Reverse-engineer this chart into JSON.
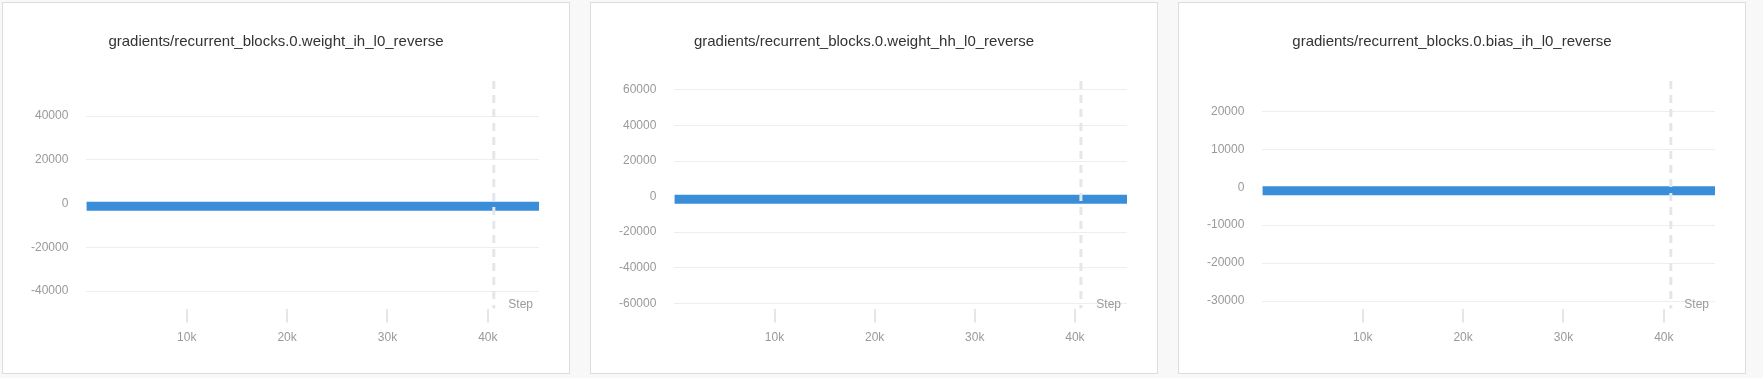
{
  "chart_data": [
    {
      "type": "line",
      "title": "gradients/recurrent_blocks.0.weight_ih_l0_reverse",
      "xlabel": "Step",
      "xlim": [
        0,
        45100
      ],
      "xticks": [
        {
          "value": 10000,
          "label": "10k"
        },
        {
          "value": 20000,
          "label": "20k"
        },
        {
          "value": 30000,
          "label": "30k"
        },
        {
          "value": 40000,
          "label": "40k"
        }
      ],
      "ylim": [
        -48000,
        56000
      ],
      "yticks": [
        -40000,
        -20000,
        0,
        20000,
        40000
      ],
      "grid": "y",
      "legend": false,
      "marker": "none",
      "series": [
        {
          "color": "#3a8dd8",
          "x": [
            0,
            45100
          ],
          "values": [
            -1200,
            -1200
          ]
        }
      ],
      "ref_lines": [
        {
          "axis": "x",
          "value": 40600,
          "color": "#e3e7ec",
          "line_style": "dashed"
        }
      ]
    },
    {
      "type": "line",
      "title": "gradients/recurrent_blocks.0.weight_hh_l0_reverse",
      "xlabel": "Step",
      "xlim": [
        0,
        45200
      ],
      "xticks": [
        {
          "value": 10000,
          "label": "10k"
        },
        {
          "value": 20000,
          "label": "20k"
        },
        {
          "value": 30000,
          "label": "30k"
        },
        {
          "value": 40000,
          "label": "40k"
        }
      ],
      "ylim": [
        -63000,
        65000
      ],
      "yticks": [
        -60000,
        -40000,
        -20000,
        0,
        20000,
        40000,
        60000
      ],
      "grid": "y",
      "legend": false,
      "marker": "none",
      "series": [
        {
          "color": "#3a8dd8",
          "x": [
            0,
            45200
          ],
          "values": [
            -1500,
            -1500
          ]
        }
      ],
      "ref_lines": [
        {
          "axis": "x",
          "value": 40600,
          "color": "#e3e7ec",
          "line_style": "dashed"
        }
      ]
    },
    {
      "type": "line",
      "title": "gradients/recurrent_blocks.0.bias_ih_l0_reverse",
      "xlabel": "Step",
      "xlim": [
        0,
        45100
      ],
      "xticks": [
        {
          "value": 10000,
          "label": "10k"
        },
        {
          "value": 20000,
          "label": "20k"
        },
        {
          "value": 30000,
          "label": "30k"
        },
        {
          "value": 40000,
          "label": "40k"
        }
      ],
      "ylim": [
        -32000,
        28000
      ],
      "yticks": [
        -30000,
        -20000,
        -10000,
        0,
        10000,
        20000
      ],
      "grid": "y",
      "legend": false,
      "marker": "none",
      "series": [
        {
          "color": "#3a8dd8",
          "x": [
            0,
            45100
          ],
          "values": [
            -900,
            -900
          ]
        }
      ],
      "ref_lines": [
        {
          "axis": "x",
          "value": 40700,
          "color": "#e3e7ec",
          "line_style": "dashed"
        }
      ]
    }
  ]
}
